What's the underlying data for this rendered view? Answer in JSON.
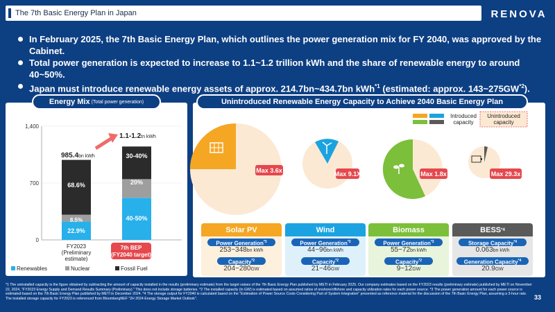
{
  "header": {
    "title": "The 7th Basic Energy Plan in Japan",
    "logo_text": "RENOVA"
  },
  "bullets": [
    {
      "text": "In February 2025, the 7th Basic Energy Plan, which outlines the power generation mix for FY 2040, was approved by the Cabinet."
    },
    {
      "text": "Total power generation is expected to increase to 1.1~1.2 trillion kWh and the share of renewable energy to around 40~50%."
    },
    {
      "text_a": "Japan must introduce renewable energy assets of approx. 214.7bn~434.7bn kWh",
      "sup_a": "*1",
      "text_b": " (estimated: approx. 143~275GW",
      "sup_b": "*2",
      "text_c": ")."
    }
  ],
  "energy_mix": {
    "title": "Energy Mix",
    "subtitle": "(Total power generation)",
    "y_ticks": [
      "1,400",
      "700",
      "0"
    ],
    "fy2023": {
      "total": "985.4",
      "total_unit": "bn kWh",
      "label_lines": [
        "FY2023",
        "(Preliminary",
        "estimate)"
      ],
      "renewables": "22.9%",
      "nuclear": "8.5%",
      "fossil": "68.6%"
    },
    "bep7": {
      "total": "1.1-1.2",
      "total_unit": "tn kWh",
      "label_lines": [
        "7th BEP",
        "(FY2040 target)"
      ],
      "renewables": "40-50%",
      "nuclear": "20%",
      "fossil": "30-40%"
    },
    "legend": [
      "Renewables",
      "Nuclear",
      "Fossil Fuel"
    ]
  },
  "chart_data": {
    "type": "bar",
    "title": "Energy Mix (Total power generation)",
    "ylabel": "bn kWh",
    "ylim": [
      0,
      1400
    ],
    "categories": [
      "FY2023 (Preliminary estimate)",
      "7th BEP (FY2040 target)"
    ],
    "totals": [
      985.4,
      1150
    ],
    "series": [
      {
        "name": "Renewables",
        "values": [
          22.9,
          45
        ]
      },
      {
        "name": "Nuclear",
        "values": [
          8.5,
          20
        ]
      },
      {
        "name": "Fossil Fuel",
        "values": [
          68.6,
          35
        ]
      }
    ]
  },
  "capacity": {
    "title": "Unintroduced Renewable Energy Capacity to Achieve 2040 Basic Energy Plan",
    "legend_introduced": [
      "Introduced",
      "capacity"
    ],
    "legend_unintroduced": [
      "Unintroduced",
      "capacity"
    ],
    "colors": {
      "solar": "#f5a623",
      "wind": "#1aa3e0",
      "biomass": "#7cbf3a",
      "bess": "#5a5a5a",
      "unintroduced": "#fce9d3"
    },
    "pies": [
      {
        "key": "solar",
        "max": "Max 3.6x"
      },
      {
        "key": "wind",
        "max": "Max 9.1X"
      },
      {
        "key": "biomass",
        "max": "Max 1.8x"
      },
      {
        "key": "bess",
        "max": "Max 29.3x"
      }
    ],
    "cards": [
      {
        "name": "Solar PV",
        "sup": "",
        "tag1": "Power Generation",
        "tag1_sup": "*3",
        "val1": "253~348",
        "val1_unit": "bn kWh",
        "tag2": "Capacity",
        "tag2_sup": "*2",
        "val2": "204~280",
        "val2_unit": "GW"
      },
      {
        "name": "Wind",
        "sup": "",
        "tag1": "Power Generation",
        "tag1_sup": "*3",
        "val1": "44~96",
        "val1_unit": "bn kWh",
        "tag2": "Capacity",
        "tag2_sup": "*2",
        "val2": "21~46",
        "val2_unit": "GW"
      },
      {
        "name": "Biomass",
        "sup": "",
        "tag1": "Power Generation",
        "tag1_sup": "*3",
        "val1": "55~72",
        "val1_unit": "bn kWh",
        "tag2": "Capacity",
        "tag2_sup": "*2",
        "val2": "9~12",
        "val2_unit": "GW"
      },
      {
        "name": "BESS",
        "sup": "*4",
        "tag1": "Storage Capacity",
        "tag1_sup": "*4",
        "val1": "0.063",
        "val1_unit": "bn kWh",
        "tag2": "Generation Capacity",
        "tag2_sup": "*4",
        "val2": "20.9",
        "val2_unit": "GW"
      }
    ]
  },
  "footnotes": "*1 The uninstalled capacity is the figure obtained by subtracting the amount of capacity installed in the results (preliminary estimate) from the target values of the 7th Basic Energy Plan published by METI in February 2025. Our company estimates based on the FY2023 results (preliminary estimate) published by METI on November 22, 2024, \"FY2023 Energy Supply and Demand Results Summary (Preliminary).\" This does not include storage batteries. *2 The installed capacity (in GW) is estimated based on assumed ratios of onshore/offshore and capacity utilization rates for each power source. *3 The power generation amount for each power source is estimated based on the 7th Basic Energy Plan published by METI in December 2024. *4 The storage output for FY2040 is calculated based on the \"Estimation of Power Source Costs Considering Part of System Integration\" presented as reference material for the discussion of the 7th Basic Energy Plan, assuming a 3-hour rate. The installed storage capacity for FY2023 is referenced from BloombergNEF \"2H 2024 Energy Storage Market Outlook\".",
  "page_number": "33"
}
